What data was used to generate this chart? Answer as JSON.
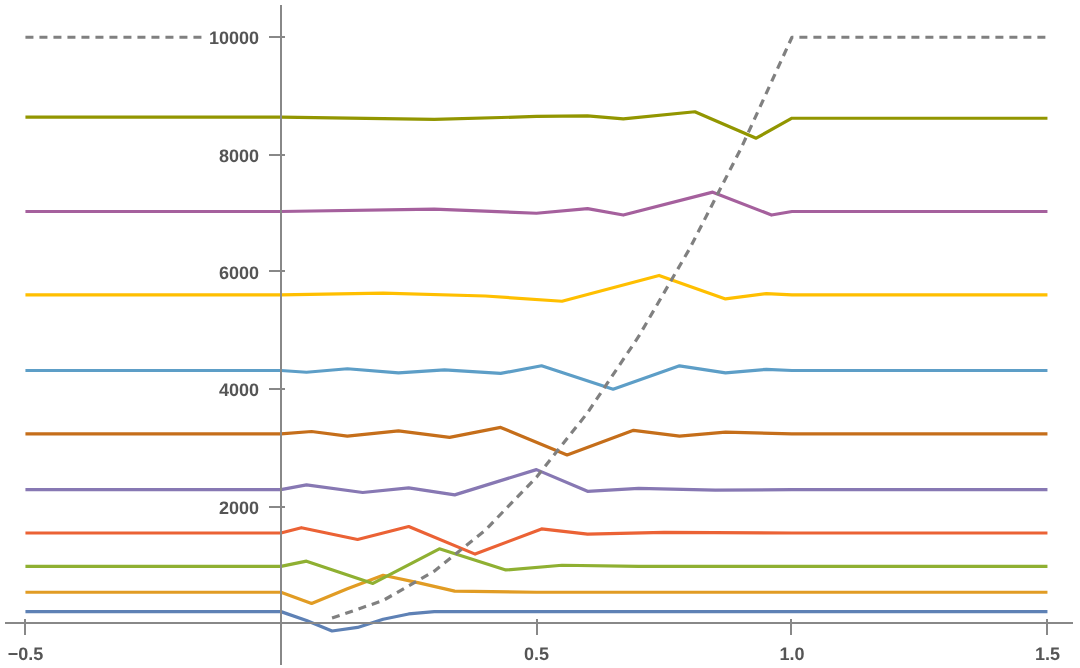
{
  "chart_data": {
    "type": "line",
    "xlim": [
      -0.54,
      1.55
    ],
    "ylim": [
      -700,
      10550
    ],
    "xticks": [
      -0.5,
      {
        "value": 0.5,
        "label": "0.5"
      },
      {
        "value": 1.0,
        "label": "1.0"
      },
      {
        "value": 1.5,
        "label": "1.5"
      }
    ],
    "yticks": [
      2000,
      4000,
      6000,
      8000,
      10000
    ],
    "grid": false,
    "marker": "none",
    "line_style": "solid",
    "series": [
      {
        "color": "#5e81b5",
        "x": [
          -0.5,
          0,
          0.05,
          0.1,
          0.15,
          0.2,
          0.25,
          0.3,
          0.5,
          1,
          1.5
        ],
        "values": [
          210,
          210,
          60,
          -120,
          -60,
          80,
          170,
          210,
          210,
          210,
          210
        ]
      },
      {
        "color": "#e19c24",
        "x": [
          -0.5,
          0,
          0.06,
          0.13,
          0.2,
          0.27,
          0.34,
          0.5,
          1,
          1.5
        ],
        "values": [
          540,
          540,
          350,
          600,
          830,
          700,
          560,
          540,
          540,
          540
        ]
      },
      {
        "color": "#8fb032",
        "x": [
          -0.5,
          0,
          0.05,
          0.18,
          0.31,
          0.44,
          0.55,
          0.7,
          1,
          1.5
        ],
        "values": [
          980,
          980,
          1070,
          690,
          1280,
          920,
          1000,
          980,
          980,
          980
        ]
      },
      {
        "color": "#eb6235",
        "x": [
          -0.5,
          0,
          0.04,
          0.15,
          0.25,
          0.38,
          0.51,
          0.6,
          0.75,
          1,
          1.5
        ],
        "values": [
          1550,
          1550,
          1640,
          1440,
          1660,
          1190,
          1620,
          1530,
          1560,
          1550,
          1550
        ]
      },
      {
        "color": "#8778b3",
        "x": [
          -0.5,
          0,
          0.05,
          0.16,
          0.25,
          0.34,
          0.5,
          0.6,
          0.7,
          0.85,
          1,
          1.5
        ],
        "values": [
          2290,
          2290,
          2370,
          2240,
          2320,
          2200,
          2630,
          2260,
          2310,
          2280,
          2290,
          2290
        ]
      },
      {
        "color": "#c56e1a",
        "x": [
          -0.5,
          0,
          0.06,
          0.13,
          0.23,
          0.33,
          0.43,
          0.56,
          0.69,
          0.78,
          0.87,
          1,
          1.5
        ],
        "values": [
          3240,
          3240,
          3280,
          3200,
          3290,
          3180,
          3350,
          2880,
          3300,
          3200,
          3270,
          3240,
          3240
        ]
      },
      {
        "color": "#5d9ec7",
        "x": [
          -0.5,
          0,
          0.05,
          0.13,
          0.23,
          0.32,
          0.43,
          0.51,
          0.65,
          0.78,
          0.87,
          0.95,
          1,
          1.5
        ],
        "values": [
          4320,
          4320,
          4290,
          4350,
          4280,
          4330,
          4270,
          4400,
          4000,
          4400,
          4280,
          4340,
          4320,
          4320
        ]
      },
      {
        "color": "#ffbf00",
        "x": [
          -0.5,
          0,
          0.2,
          0.4,
          0.55,
          0.74,
          0.87,
          0.95,
          1,
          1.5
        ],
        "values": [
          5610,
          5610,
          5640,
          5590,
          5500,
          5940,
          5540,
          5630,
          5610,
          5610
        ]
      },
      {
        "color": "#a5609d",
        "x": [
          -0.5,
          0,
          0.3,
          0.5,
          0.6,
          0.67,
          0.845,
          0.96,
          1,
          1.5
        ],
        "values": [
          7030,
          7030,
          7070,
          7000,
          7080,
          6970,
          7360,
          6970,
          7030,
          7030
        ]
      },
      {
        "color": "#929600",
        "x": [
          -0.5,
          0,
          0.3,
          0.5,
          0.6,
          0.67,
          0.81,
          0.93,
          1,
          1.5
        ],
        "values": [
          8640,
          8640,
          8600,
          8650,
          8660,
          8610,
          8730,
          8280,
          8620,
          8620
        ]
      },
      {
        "color": "#808080",
        "line_style": "dashed",
        "x": [
          -0.5,
          -0.15,
          0,
          0.1,
          0.2,
          0.3,
          0.4,
          0.5,
          0.6,
          0.7,
          0.8,
          0.9,
          1,
          1.5
        ],
        "values": [
          10000,
          10000,
          null,
          100,
          400,
          900,
          1600,
          2500,
          3600,
          4900,
          6400,
          8100,
          10000,
          10000
        ]
      }
    ]
  }
}
